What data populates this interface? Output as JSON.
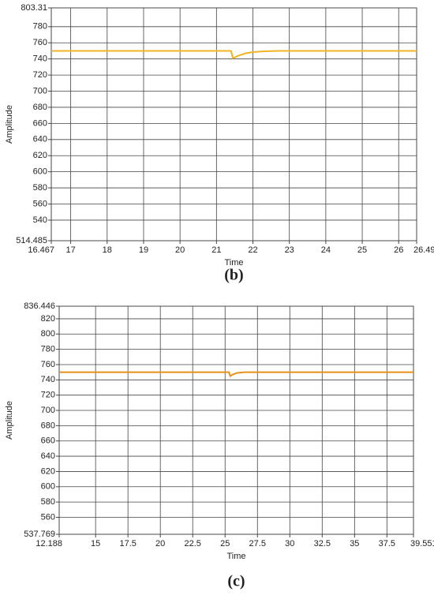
{
  "chart_data": [
    {
      "type": "line",
      "caption": "(b)",
      "x_label": "Time",
      "y_label": "Amplitude",
      "color": "#f0b323",
      "x": [
        16.467,
        17,
        18,
        19,
        20,
        21,
        21.4,
        21.45,
        21.6,
        21.8,
        22,
        22.3,
        22.7,
        23,
        24,
        25,
        26,
        26.493
      ],
      "values": [
        750,
        750,
        750,
        750,
        750,
        750,
        750,
        741,
        744,
        747,
        748.5,
        749.5,
        750,
        750,
        750,
        750,
        750,
        750
      ],
      "xlim": [
        16.467,
        26.493
      ],
      "xticks": [
        16.467,
        17,
        18,
        19,
        20,
        21,
        22,
        23,
        24,
        25,
        26,
        26.493
      ],
      "ylim": [
        514.485,
        803.31
      ],
      "yticks": [
        514.485,
        540,
        560,
        580,
        600,
        620,
        640,
        660,
        680,
        700,
        720,
        740,
        760,
        780,
        803.31
      ],
      "grid": true
    },
    {
      "type": "line",
      "caption": "(c)",
      "x_label": "Time",
      "y_label": "Amplitude",
      "color": "#e8901a",
      "x": [
        12.188,
        15,
        17.5,
        20,
        22.5,
        25,
        25.3,
        25.4,
        25.6,
        25.9,
        26.5,
        30,
        35,
        39.551
      ],
      "values": [
        750,
        750,
        750,
        750,
        750,
        750,
        750,
        745,
        747,
        749,
        750,
        750,
        750,
        750
      ],
      "xlim": [
        12.188,
        39.551
      ],
      "xticks": [
        12.188,
        15,
        17.5,
        20,
        22.5,
        25,
        27.5,
        30,
        32.5,
        35,
        37.5,
        39.551
      ],
      "ylim": [
        537.769,
        836.446
      ],
      "yticks": [
        537.769,
        560,
        580,
        600,
        620,
        640,
        660,
        680,
        700,
        720,
        740,
        760,
        780,
        800,
        820,
        836.446
      ],
      "grid": true
    }
  ]
}
